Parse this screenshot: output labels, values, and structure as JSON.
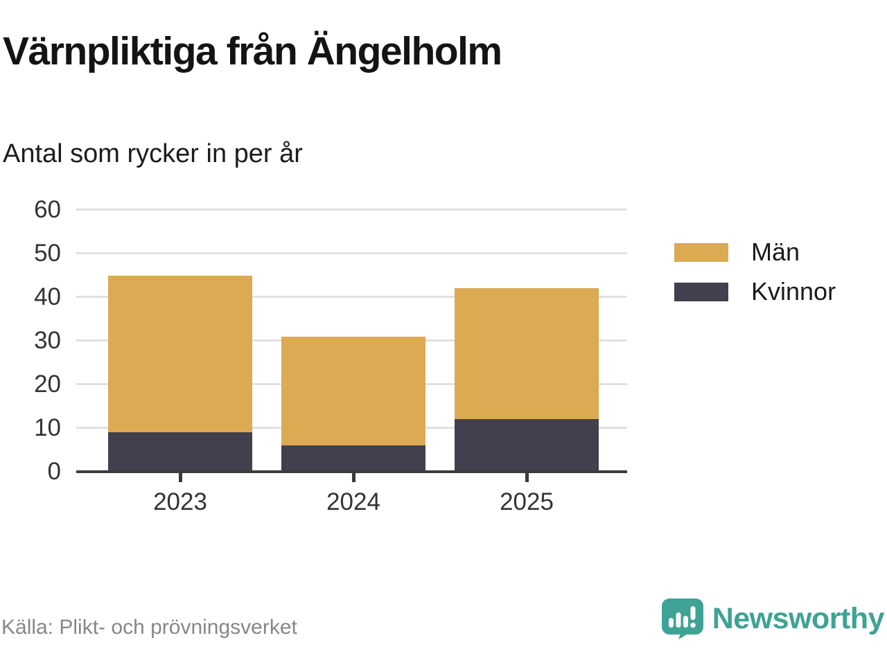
{
  "title": "Värnpliktiga från Ängelholm",
  "subtitle": "Antal som rycker in per år",
  "source": "Källa: Plikt- och prövningsverket",
  "brand": {
    "name": "Newsworthy",
    "color": "#3ea394",
    "icon": "speech-bubble-bar-chart-icon"
  },
  "chart_data": {
    "type": "bar",
    "stacked": true,
    "title": "Värnpliktiga från Ängelholm",
    "subtitle": "Antal som rycker in per år",
    "categories": [
      "2023",
      "2024",
      "2025"
    ],
    "series": [
      {
        "name": "Män",
        "color": "#dbaa52",
        "values": [
          36,
          25,
          30
        ]
      },
      {
        "name": "Kvinnor",
        "color": "#42404e",
        "values": [
          9,
          6,
          12
        ]
      }
    ],
    "stack_order_bottom_to_top": [
      "Kvinnor",
      "Män"
    ],
    "totals": [
      45,
      31,
      42
    ],
    "xlabel": "",
    "ylabel": "",
    "ylim": [
      0,
      60
    ],
    "yticks": [
      0,
      10,
      20,
      30,
      40,
      50,
      60
    ],
    "grid": true,
    "legend_position": "right",
    "colors": {
      "grid": "#e1e1e1",
      "axis": "#3b3b3b",
      "tick_label": "#333333"
    }
  }
}
